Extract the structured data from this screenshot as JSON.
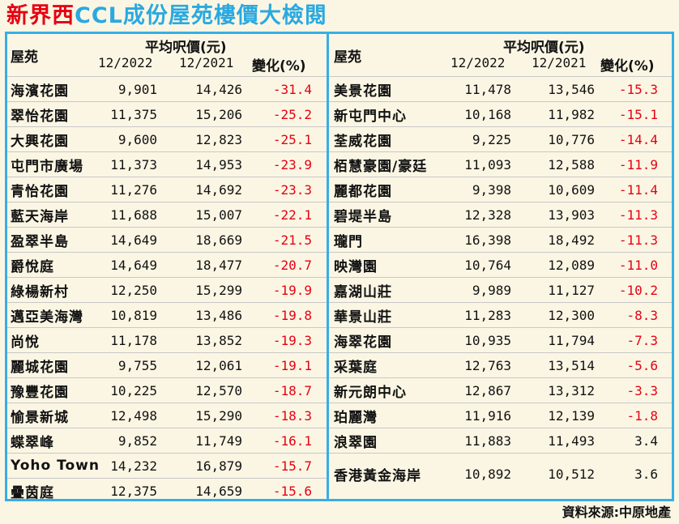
{
  "title": {
    "part1": "新界西",
    "part2": "CCL成份屋苑樓價大檢閱"
  },
  "header": {
    "estate": "屋苑",
    "price_label": "平均呎價(元)",
    "col_2022": "12/2022",
    "col_2021": "12/2021",
    "col_change": "變化(%)"
  },
  "left_rows": [
    {
      "name": "海濱花園",
      "p2022": "9,901",
      "p2021": "14,426",
      "change": "-31.4"
    },
    {
      "name": "翠怡花園",
      "p2022": "11,375",
      "p2021": "15,206",
      "change": "-25.2"
    },
    {
      "name": "大興花園",
      "p2022": "9,600",
      "p2021": "12,823",
      "change": "-25.1"
    },
    {
      "name": "屯門市廣場",
      "p2022": "11,373",
      "p2021": "14,953",
      "change": "-23.9"
    },
    {
      "name": "青怡花園",
      "p2022": "11,276",
      "p2021": "14,692",
      "change": "-23.3"
    },
    {
      "name": "藍天海岸",
      "p2022": "11,688",
      "p2021": "15,007",
      "change": "-22.1"
    },
    {
      "name": "盈翠半島",
      "p2022": "14,649",
      "p2021": "18,669",
      "change": "-21.5"
    },
    {
      "name": "爵悅庭",
      "p2022": "14,649",
      "p2021": "18,477",
      "change": "-20.7"
    },
    {
      "name": "綠楊新村",
      "p2022": "12,250",
      "p2021": "15,299",
      "change": "-19.9"
    },
    {
      "name": "邁亞美海灣",
      "p2022": "10,819",
      "p2021": "13,486",
      "change": "-19.8"
    },
    {
      "name": "尚悅",
      "p2022": "11,178",
      "p2021": "13,852",
      "change": "-19.3"
    },
    {
      "name": "麗城花園",
      "p2022": "9,755",
      "p2021": "12,061",
      "change": "-19.1"
    },
    {
      "name": "豫豐花園",
      "p2022": "10,225",
      "p2021": "12,570",
      "change": "-18.7"
    },
    {
      "name": "愉景新城",
      "p2022": "12,498",
      "p2021": "15,290",
      "change": "-18.3"
    },
    {
      "name": "蝶翠峰",
      "p2022": "9,852",
      "p2021": "11,749",
      "change": "-16.1"
    },
    {
      "name": "Yoho Town",
      "p2022": "14,232",
      "p2021": "16,879",
      "change": "-15.7"
    },
    {
      "name": "疊茵庭",
      "p2022": "12,375",
      "p2021": "14,659",
      "change": "-15.6"
    }
  ],
  "right_rows": [
    {
      "name": "美景花園",
      "p2022": "11,478",
      "p2021": "13,546",
      "change": "-15.3"
    },
    {
      "name": "新屯門中心",
      "p2022": "10,168",
      "p2021": "11,982",
      "change": "-15.1"
    },
    {
      "name": "荃威花園",
      "p2022": "9,225",
      "p2021": "10,776",
      "change": "-14.4"
    },
    {
      "name": "栢慧豪園/豪廷",
      "p2022": "11,093",
      "p2021": "12,588",
      "change": "-11.9"
    },
    {
      "name": "麗都花園",
      "p2022": "9,398",
      "p2021": "10,609",
      "change": "-11.4"
    },
    {
      "name": "碧堤半島",
      "p2022": "12,328",
      "p2021": "13,903",
      "change": "-11.3"
    },
    {
      "name": "瓏門",
      "p2022": "16,398",
      "p2021": "18,492",
      "change": "-11.3"
    },
    {
      "name": "映灣園",
      "p2022": "10,764",
      "p2021": "12,089",
      "change": "-11.0"
    },
    {
      "name": "嘉湖山莊",
      "p2022": "9,989",
      "p2021": "11,127",
      "change": "-10.2"
    },
    {
      "name": "華景山莊",
      "p2022": "11,283",
      "p2021": "12,300",
      "change": "-8.3"
    },
    {
      "name": "海翠花園",
      "p2022": "10,935",
      "p2021": "11,794",
      "change": "-7.3"
    },
    {
      "name": "采葉庭",
      "p2022": "12,763",
      "p2021": "13,514",
      "change": "-5.6"
    },
    {
      "name": "新元朗中心",
      "p2022": "12,867",
      "p2021": "13,312",
      "change": "-3.3"
    },
    {
      "name": "珀麗灣",
      "p2022": "11,916",
      "p2021": "12,139",
      "change": "-1.8"
    },
    {
      "name": "浪翠園",
      "p2022": "11,883",
      "p2021": "11,493",
      "change": "3.4"
    },
    {
      "name": "香港黃金海岸",
      "p2022": "10,892",
      "p2021": "10,512",
      "change": "3.6"
    }
  ],
  "source": "資料來源:中原地產",
  "colors": {
    "negative": "#e60012",
    "frame": "#38aee6",
    "title_blue": "#2aa9e0",
    "background": "#fbf6e4"
  }
}
